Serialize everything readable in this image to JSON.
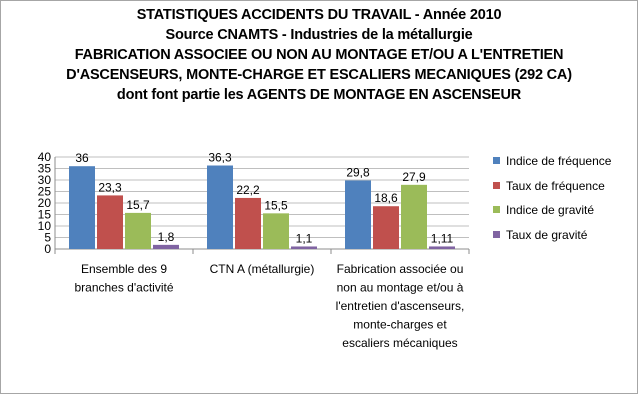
{
  "chart_data": {
    "type": "bar",
    "title_lines": [
      "STATISTIQUES ACCIDENTS DU TRAVAIL - Année 2010",
      "Source CNAMTS - Industries de la métallurgie",
      "FABRICATION ASSOCIEE OU NON AU MONTAGE ET/OU A L'ENTRETIEN",
      "D'ASCENSEURS, MONTE-CHARGE ET ESCALIERS MECANIQUES (292 CA)",
      "dont font partie les AGENTS DE MONTAGE EN ASCENSEUR"
    ],
    "categories": [
      [
        "Ensemble des 9",
        "branches d'activité"
      ],
      [
        "CTN A (métallurgie)"
      ],
      [
        "Fabrication associée ou",
        "non au montage  et/ou à",
        "l'entretien d'ascenseurs,",
        "monte-charges et",
        "escaliers mécaniques"
      ]
    ],
    "series": [
      {
        "name": "Indice de fréquence",
        "color": "#4f81bd",
        "values": [
          36,
          36.3,
          29.8
        ],
        "labels": [
          "36",
          "36,3",
          "29,8"
        ]
      },
      {
        "name": "Taux de fréquence",
        "color": "#c0504d",
        "values": [
          23.3,
          22.2,
          18.6
        ],
        "labels": [
          "23,3",
          "22,2",
          "18,6"
        ]
      },
      {
        "name": "Indice de gravité",
        "color": "#9bbb59",
        "values": [
          15.7,
          15.5,
          27.9
        ],
        "labels": [
          "15,7",
          "15,5",
          "27,9"
        ]
      },
      {
        "name": "Taux de gravité",
        "color": "#8064a2",
        "values": [
          1.8,
          1.1,
          1.11
        ],
        "labels": [
          "1,8",
          "1,1",
          "1,11"
        ]
      }
    ],
    "yticks": [
      "0",
      "5",
      "10",
      "15",
      "20",
      "25",
      "30",
      "35",
      "40"
    ],
    "ylim": [
      0,
      40
    ],
    "grid": true,
    "legend_position": "right"
  }
}
